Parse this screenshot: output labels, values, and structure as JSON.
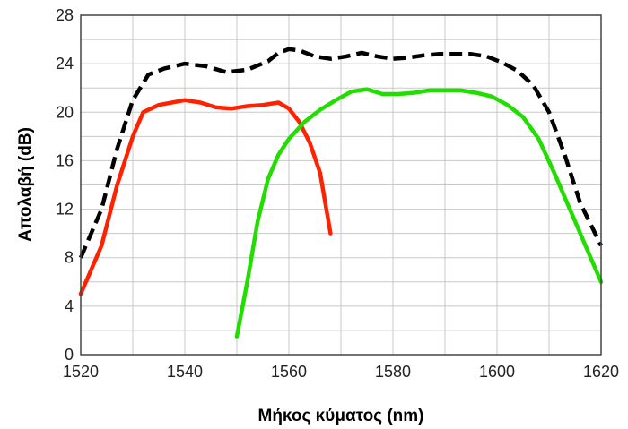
{
  "chart_data": {
    "type": "line",
    "title": "",
    "xlabel": "Μήκος κύματος (nm)",
    "ylabel": "Απολαβή (dB)",
    "xlim": [
      1520,
      1620
    ],
    "ylim": [
      0,
      28
    ],
    "xticks": [
      1520,
      1540,
      1560,
      1580,
      1600,
      1620
    ],
    "yticks": [
      0,
      4,
      8,
      12,
      16,
      20,
      24,
      28
    ],
    "grid": true,
    "legend": "none",
    "series": [
      {
        "color": "#ff2200",
        "dash": "solid",
        "x": [
          1520,
          1524,
          1527,
          1530,
          1532,
          1535,
          1540,
          1543,
          1546,
          1549,
          1552,
          1555,
          1558,
          1560,
          1562,
          1564,
          1566,
          1568
        ],
        "y": [
          5,
          9,
          14,
          18,
          20,
          20.6,
          21,
          20.8,
          20.4,
          20.3,
          20.5,
          20.6,
          20.8,
          20.3,
          19.2,
          17.5,
          15,
          10
        ]
      },
      {
        "color": "#22dd00",
        "dash": "solid",
        "x": [
          1550,
          1552,
          1554,
          1556,
          1558,
          1560,
          1563,
          1566,
          1569,
          1572,
          1575,
          1578,
          1581,
          1584,
          1587,
          1590,
          1593,
          1596,
          1599,
          1602,
          1605,
          1608,
          1611,
          1614,
          1617,
          1620
        ],
        "y": [
          1.5,
          6,
          11,
          14.5,
          16.5,
          17.8,
          19.2,
          20.2,
          21,
          21.7,
          21.9,
          21.5,
          21.5,
          21.6,
          21.8,
          21.8,
          21.8,
          21.6,
          21.3,
          20.6,
          19.6,
          17.8,
          15,
          12,
          9,
          6
        ]
      },
      {
        "color": "#000000",
        "dash": "dashed",
        "x": [
          1520,
          1524,
          1527,
          1530,
          1533,
          1536,
          1540,
          1544,
          1548,
          1552,
          1556,
          1558,
          1560,
          1562,
          1565,
          1568,
          1571,
          1574,
          1577,
          1580,
          1583,
          1586,
          1589,
          1592,
          1595,
          1598,
          1601,
          1604,
          1607,
          1610,
          1613,
          1616,
          1620
        ],
        "y": [
          8,
          12,
          17,
          21,
          23.1,
          23.6,
          24,
          23.8,
          23.3,
          23.5,
          24.2,
          24.9,
          25.2,
          25.1,
          24.6,
          24.4,
          24.6,
          24.9,
          24.6,
          24.4,
          24.5,
          24.7,
          24.8,
          24.8,
          24.8,
          24.6,
          24.1,
          23.4,
          22.2,
          20,
          16.5,
          12.5,
          9
        ]
      }
    ]
  }
}
